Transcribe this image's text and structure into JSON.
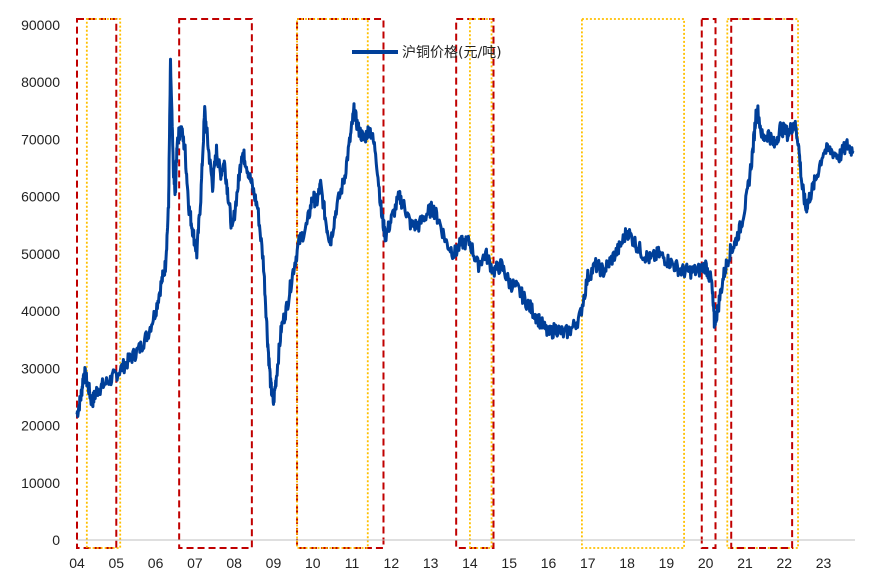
{
  "chart_data": {
    "type": "line",
    "title": "",
    "xlabel": "",
    "ylabel": "",
    "ylim": [
      0,
      90000
    ],
    "xlim": [
      2004.0,
      2023.8
    ],
    "yticks": [
      "0",
      "10000",
      "20000",
      "30000",
      "40000",
      "50000",
      "60000",
      "70000",
      "80000",
      "90000"
    ],
    "xticks": [
      {
        "x": 2004.0,
        "label": "04"
      },
      {
        "x": 2005.0,
        "label": "05"
      },
      {
        "x": 2006.0,
        "label": "06"
      },
      {
        "x": 2007.0,
        "label": "07"
      },
      {
        "x": 2008.0,
        "label": "08"
      },
      {
        "x": 2009.0,
        "label": "09"
      },
      {
        "x": 2010.0,
        "label": "10"
      },
      {
        "x": 2011.0,
        "label": "11"
      },
      {
        "x": 2012.0,
        "label": "12"
      },
      {
        "x": 2013.0,
        "label": "13"
      },
      {
        "x": 2014.0,
        "label": "14"
      },
      {
        "x": 2015.0,
        "label": "15"
      },
      {
        "x": 2016.0,
        "label": "16"
      },
      {
        "x": 2017.0,
        "label": "17"
      },
      {
        "x": 2018.0,
        "label": "18"
      },
      {
        "x": 2019.0,
        "label": "19"
      },
      {
        "x": 2020.0,
        "label": "20"
      },
      {
        "x": 2021.0,
        "label": "21"
      },
      {
        "x": 2022.0,
        "label": "22"
      },
      {
        "x": 2023.0,
        "label": "23"
      }
    ],
    "grid": false,
    "legend": {
      "position": "top-center"
    },
    "series": [
      {
        "name": "沪铜价格(元/吨)",
        "color": "#003f99",
        "points": [
          [
            2004.0,
            22000
          ],
          [
            2004.1,
            25000
          ],
          [
            2004.18,
            29500
          ],
          [
            2004.28,
            27000
          ],
          [
            2004.38,
            24000
          ],
          [
            2004.5,
            26000
          ],
          [
            2004.65,
            27000
          ],
          [
            2004.85,
            28000
          ],
          [
            2005.0,
            29000
          ],
          [
            2005.2,
            30500
          ],
          [
            2005.4,
            32000
          ],
          [
            2005.6,
            33500
          ],
          [
            2005.8,
            36000
          ],
          [
            2006.0,
            40000
          ],
          [
            2006.15,
            45000
          ],
          [
            2006.25,
            48000
          ],
          [
            2006.33,
            58000
          ],
          [
            2006.38,
            83000
          ],
          [
            2006.45,
            65000
          ],
          [
            2006.5,
            60000
          ],
          [
            2006.55,
            70000
          ],
          [
            2006.65,
            72000
          ],
          [
            2006.75,
            68000
          ],
          [
            2006.85,
            58000
          ],
          [
            2006.95,
            54000
          ],
          [
            2007.05,
            50000
          ],
          [
            2007.15,
            60000
          ],
          [
            2007.25,
            75000
          ],
          [
            2007.35,
            68000
          ],
          [
            2007.45,
            62000
          ],
          [
            2007.55,
            68000
          ],
          [
            2007.65,
            64000
          ],
          [
            2007.75,
            66000
          ],
          [
            2007.85,
            60000
          ],
          [
            2007.95,
            54000
          ],
          [
            2008.1,
            62000
          ],
          [
            2008.2,
            68000
          ],
          [
            2008.3,
            66000
          ],
          [
            2008.45,
            62000
          ],
          [
            2008.6,
            58000
          ],
          [
            2008.75,
            48000
          ],
          [
            2008.85,
            35000
          ],
          [
            2008.93,
            27000
          ],
          [
            2009.0,
            24000
          ],
          [
            2009.08,
            29000
          ],
          [
            2009.2,
            37000
          ],
          [
            2009.35,
            41000
          ],
          [
            2009.5,
            47000
          ],
          [
            2009.65,
            52000
          ],
          [
            2009.85,
            55000
          ],
          [
            2010.0,
            60000
          ],
          [
            2010.1,
            59000
          ],
          [
            2010.2,
            62000
          ],
          [
            2010.35,
            55000
          ],
          [
            2010.45,
            52000
          ],
          [
            2010.6,
            58000
          ],
          [
            2010.8,
            63000
          ],
          [
            2010.95,
            70000
          ],
          [
            2011.05,
            75000
          ],
          [
            2011.15,
            72000
          ],
          [
            2011.3,
            70000
          ],
          [
            2011.45,
            72000
          ],
          [
            2011.6,
            68000
          ],
          [
            2011.75,
            57000
          ],
          [
            2011.85,
            53000
          ],
          [
            2012.0,
            56000
          ],
          [
            2012.2,
            60000
          ],
          [
            2012.35,
            58000
          ],
          [
            2012.5,
            55000
          ],
          [
            2012.7,
            55000
          ],
          [
            2012.9,
            57000
          ],
          [
            2013.05,
            58000
          ],
          [
            2013.2,
            56000
          ],
          [
            2013.4,
            52000
          ],
          [
            2013.6,
            50000
          ],
          [
            2013.8,
            52000
          ],
          [
            2014.0,
            52000
          ],
          [
            2014.2,
            48000
          ],
          [
            2014.4,
            50000
          ],
          [
            2014.6,
            47000
          ],
          [
            2014.8,
            48000
          ],
          [
            2015.0,
            45000
          ],
          [
            2015.2,
            44000
          ],
          [
            2015.4,
            42000
          ],
          [
            2015.6,
            40000
          ],
          [
            2015.8,
            38000
          ],
          [
            2016.0,
            36000
          ],
          [
            2016.2,
            37000
          ],
          [
            2016.4,
            36000
          ],
          [
            2016.6,
            37000
          ],
          [
            2016.8,
            39000
          ],
          [
            2017.0,
            46000
          ],
          [
            2017.2,
            48000
          ],
          [
            2017.4,
            47000
          ],
          [
            2017.6,
            49000
          ],
          [
            2017.8,
            51000
          ],
          [
            2018.0,
            54000
          ],
          [
            2018.2,
            52000
          ],
          [
            2018.4,
            50000
          ],
          [
            2018.6,
            49000
          ],
          [
            2018.8,
            50000
          ],
          [
            2019.0,
            49000
          ],
          [
            2019.2,
            48000
          ],
          [
            2019.4,
            47000
          ],
          [
            2019.6,
            47000
          ],
          [
            2019.8,
            47000
          ],
          [
            2020.0,
            48000
          ],
          [
            2020.15,
            45000
          ],
          [
            2020.22,
            38000
          ],
          [
            2020.3,
            40000
          ],
          [
            2020.45,
            46000
          ],
          [
            2020.6,
            50000
          ],
          [
            2020.75,
            52000
          ],
          [
            2020.9,
            55000
          ],
          [
            2021.05,
            60000
          ],
          [
            2021.2,
            68000
          ],
          [
            2021.3,
            76000
          ],
          [
            2021.45,
            70000
          ],
          [
            2021.6,
            71000
          ],
          [
            2021.75,
            69000
          ],
          [
            2021.9,
            72000
          ],
          [
            2022.1,
            71000
          ],
          [
            2022.25,
            73000
          ],
          [
            2022.35,
            70000
          ],
          [
            2022.45,
            62000
          ],
          [
            2022.55,
            58000
          ],
          [
            2022.65,
            60000
          ],
          [
            2022.8,
            63000
          ],
          [
            2023.0,
            68000
          ],
          [
            2023.2,
            68000
          ],
          [
            2023.4,
            67000
          ],
          [
            2023.6,
            69000
          ],
          [
            2023.75,
            68000
          ]
        ]
      }
    ],
    "highlight_periods": [
      {
        "start": 2004.0,
        "end": 2005.0,
        "style": "red-dashed"
      },
      {
        "start": 2004.25,
        "end": 2005.1,
        "style": "yellow-dotted"
      },
      {
        "start": 2006.6,
        "end": 2008.45,
        "style": "red-dashed"
      },
      {
        "start": 2009.6,
        "end": 2011.8,
        "style": "red-dashed"
      },
      {
        "start": 2009.6,
        "end": 2011.4,
        "style": "yellow-dotted"
      },
      {
        "start": 2013.65,
        "end": 2014.6,
        "style": "red-dashed"
      },
      {
        "start": 2014.0,
        "end": 2014.55,
        "style": "yellow-dotted"
      },
      {
        "start": 2016.85,
        "end": 2019.45,
        "style": "yellow-dotted"
      },
      {
        "start": 2019.9,
        "end": 2020.25,
        "style": "red-dashed"
      },
      {
        "start": 2020.55,
        "end": 2022.35,
        "style": "yellow-dotted"
      },
      {
        "start": 2020.65,
        "end": 2022.2,
        "style": "red-dashed"
      }
    ],
    "colors": {
      "red": "#c00000",
      "yellow": "#ffc000",
      "line": "#003f99"
    }
  }
}
